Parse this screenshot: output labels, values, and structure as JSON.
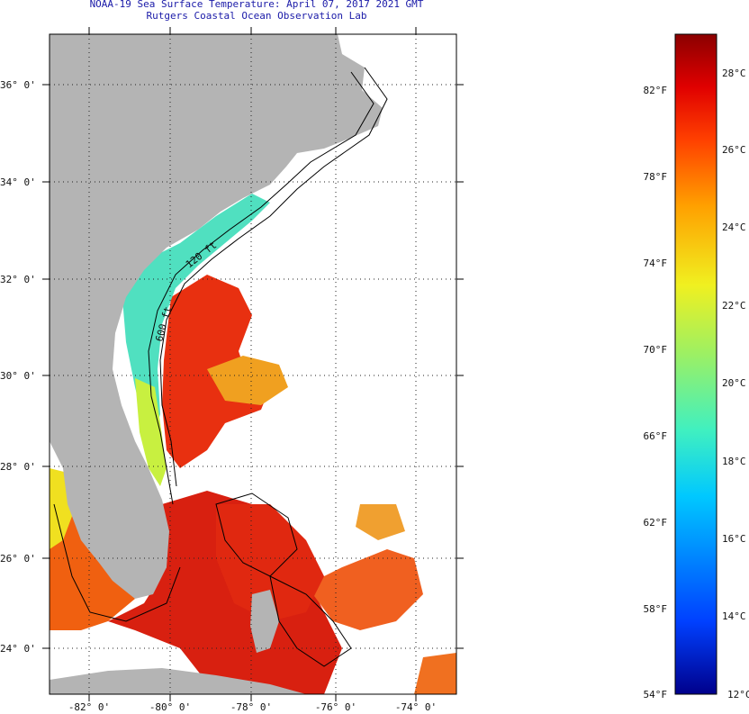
{
  "title_line1": "NOAA-19 Sea Surface Temperature:  April 07, 2017 2021 GMT",
  "title_line2": "Rutgers Coastal Ocean Observation Lab",
  "map": {
    "lat_range": [
      23,
      37
    ],
    "lon_range": [
      -83,
      -73
    ],
    "lat_labels": [
      "36° 0'",
      "34° 0'",
      "32° 0'",
      "30° 0'",
      "28° 0'",
      "26° 0'",
      "24° 0'"
    ],
    "lon_labels": [
      "-82° 0'",
      "-80° 0'",
      "-78° 0'",
      "-76° 0'",
      "-74° 0'"
    ],
    "land_color": "#b4b4b4",
    "isobath_labels": [
      "120 ft",
      "600 ft"
    ]
  },
  "colorbar": {
    "fahrenheit_labels": [
      "82°F",
      "78°F",
      "74°F",
      "70°F",
      "66°F",
      "62°F",
      "58°F",
      "54°F"
    ],
    "celsius_labels": [
      "28°C",
      "26°C",
      "24°C",
      "22°C",
      "20°C",
      "18°C",
      "16°C",
      "14°C",
      "12°C"
    ],
    "min_c": 12,
    "max_c": 29.5,
    "colors_low_to_high": [
      "#00008b",
      "#0040ff",
      "#00c8ff",
      "#40f0c0",
      "#a0f060",
      "#f0f020",
      "#ffa000",
      "#ff4000",
      "#e00000",
      "#8b0000"
    ]
  }
}
